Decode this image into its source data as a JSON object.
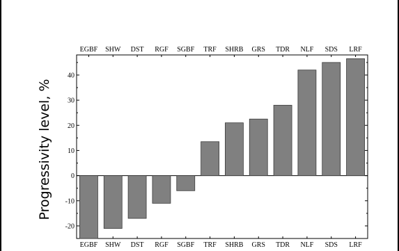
{
  "chart_data": {
    "type": "bar",
    "categories": [
      "EGBF",
      "SHW",
      "DST",
      "RGF",
      "SGBF",
      "TRF",
      "SHRB",
      "GRS",
      "TDR",
      "NLF",
      "SDS",
      "LRF"
    ],
    "values": [
      -25,
      -21,
      -17,
      -11,
      -6,
      13.5,
      21,
      22.5,
      28,
      42,
      45,
      46.5
    ],
    "title": "",
    "xlabel": "",
    "ylabel": "Progressivity level, %",
    "ylim": [
      -25,
      48
    ],
    "yticks": [
      -20,
      -10,
      0,
      10,
      20,
      30,
      40
    ],
    "grid": false,
    "bar_color": "#808080",
    "category_labels_position": "top-and-bottom"
  }
}
